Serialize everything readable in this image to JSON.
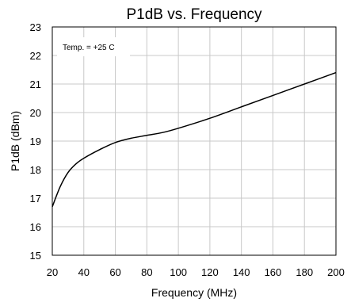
{
  "chart_data": {
    "type": "line",
    "title": "P1dB vs. Frequency",
    "xlabel": "Frequency (MHz)",
    "ylabel": "P1dB (dBm)",
    "xlim": [
      20,
      200
    ],
    "ylim": [
      15,
      23
    ],
    "x_ticks": [
      "20",
      "40",
      "60",
      "80",
      "100",
      "120",
      "140",
      "160",
      "180",
      "200"
    ],
    "y_ticks": [
      "15",
      "16",
      "17",
      "18",
      "19",
      "20",
      "21",
      "22",
      "23"
    ],
    "grid": true,
    "annotation": "Temp. = +25 C",
    "series": [
      {
        "x": [
          20,
          25,
          30,
          35,
          40,
          50,
          60,
          70,
          80,
          90,
          100,
          120,
          140,
          160,
          180,
          200
        ],
        "y": [
          16.7,
          17.4,
          17.9,
          18.2,
          18.4,
          18.7,
          18.95,
          19.1,
          19.2,
          19.3,
          19.45,
          19.8,
          20.2,
          20.6,
          21.0,
          21.4
        ]
      }
    ]
  }
}
